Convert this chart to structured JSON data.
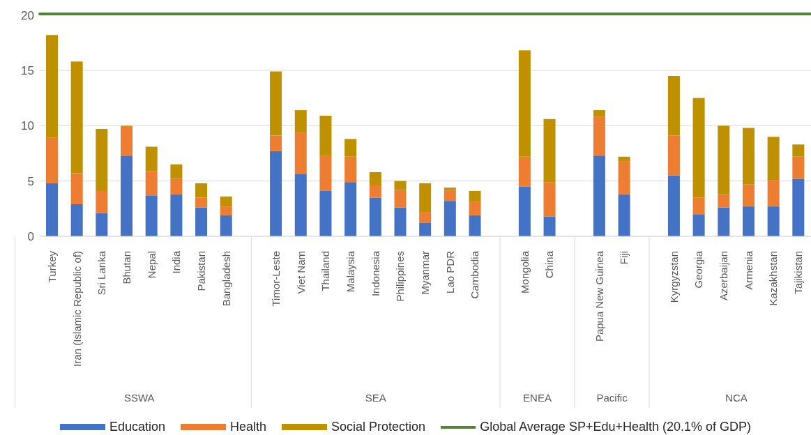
{
  "chart_data": {
    "type": "bar",
    "stacked": true,
    "categories": [
      "Turkey",
      "Iran (Islamic Republic of)",
      "Sri Lanka",
      "Bhutan",
      "Nepal",
      "India",
      "Pakistan",
      "Bangladesh",
      null,
      "Timor-Leste",
      "Viet Nam",
      "Thailand",
      "Malaysia",
      "Indonesia",
      "Philippines",
      "Myanmar",
      "Lao PDR",
      "Cambodia",
      null,
      "Mongolia",
      "China",
      null,
      "Papua New Guinea",
      "Fiji",
      null,
      "Kyrgyzstan",
      "Georgia",
      "Azerbaijan",
      "Armenia",
      "Kazakhstan",
      "Tajikistan"
    ],
    "series": [
      {
        "name": "Education",
        "color": "#4472c4",
        "values": [
          4.8,
          2.9,
          2.1,
          7.3,
          3.7,
          3.8,
          2.6,
          1.9,
          null,
          7.7,
          5.6,
          4.1,
          4.9,
          3.5,
          2.6,
          1.2,
          3.2,
          1.9,
          null,
          4.5,
          1.8,
          null,
          7.3,
          3.8,
          null,
          5.5,
          2.0,
          2.6,
          2.7,
          2.7,
          5.2
        ]
      },
      {
        "name": "Health",
        "color": "#ed7d31",
        "values": [
          4.1,
          2.8,
          2.0,
          2.6,
          2.2,
          1.4,
          0.9,
          0.8,
          null,
          1.4,
          3.8,
          3.2,
          2.3,
          1.1,
          1.6,
          1.0,
          1.0,
          1.2,
          null,
          2.7,
          3.1,
          null,
          3.5,
          3.0,
          null,
          3.6,
          1.5,
          1.2,
          2.0,
          2.4,
          2.0
        ]
      },
      {
        "name": "Social Protection",
        "color": "#bf9000",
        "values": [
          9.3,
          10.1,
          5.6,
          0.1,
          2.2,
          1.3,
          1.3,
          0.9,
          null,
          5.8,
          2.0,
          3.6,
          1.6,
          1.2,
          0.8,
          2.6,
          0.2,
          1.0,
          null,
          9.6,
          5.7,
          null,
          0.6,
          0.4,
          null,
          5.4,
          9.0,
          6.2,
          5.1,
          3.9,
          1.1
        ]
      }
    ],
    "ref_lines": [
      {
        "axis": "y",
        "value": 20.1,
        "label": "Global Average SP+Edu+Health (20.1% of GDP)",
        "color": "#548235"
      }
    ],
    "annotations": [
      "SSWA",
      "SEA",
      "ENEA",
      "Pacific",
      "NCA"
    ],
    "ylim": [
      0,
      20.1
    ],
    "yticks": [
      0,
      5,
      10,
      15,
      20
    ],
    "grid": "y",
    "legend": "bottom"
  }
}
